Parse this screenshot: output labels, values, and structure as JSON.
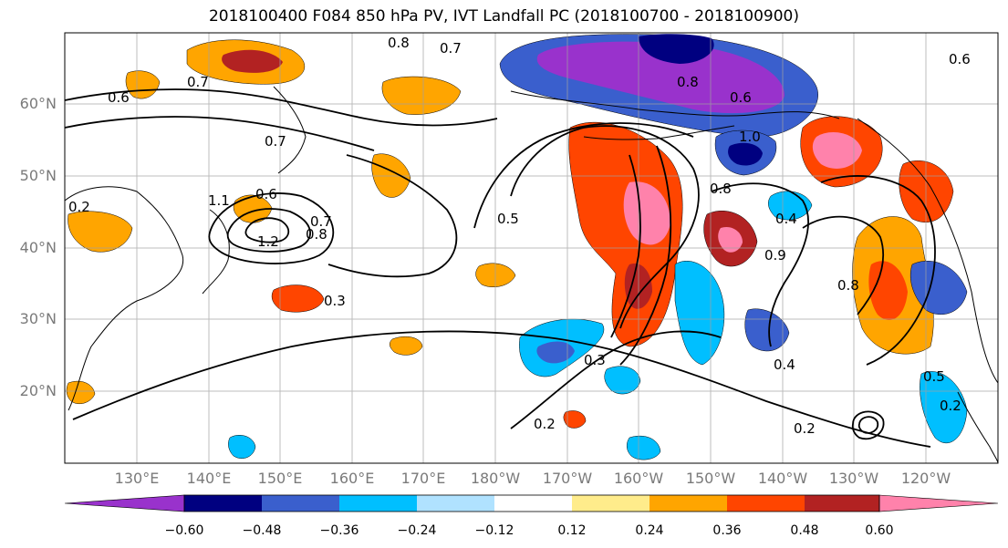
{
  "title": "2018100400 F084 850 hPa PV, IVT Landfall PC (2018100700 - 2018100900)",
  "lat_labels": [
    "60°N",
    "50°N",
    "40°N",
    "30°N",
    "20°N"
  ],
  "lon_labels": [
    "130°E",
    "140°E",
    "150°E",
    "160°E",
    "170°E",
    "180°W",
    "170°W",
    "160°W",
    "150°W",
    "140°W",
    "130°W",
    "120°W"
  ],
  "colorbar": {
    "ticks": [
      "−0.60",
      "−0.48",
      "−0.36",
      "−0.24",
      "−0.12",
      "0.12",
      "0.24",
      "0.36",
      "0.48",
      "0.60"
    ],
    "colors": [
      "#9932cc",
      "#000080",
      "#3a5fcd",
      "#00bfff",
      "#b0e2ff",
      "#ffffff",
      "#ffec8b",
      "#ffa500",
      "#ff4500",
      "#b22222",
      "#ff82ab"
    ]
  },
  "contour_labels": [
    "0.8",
    "0.7",
    "0.7",
    "0.6",
    "0.7",
    "1.1",
    "0.6",
    "0.8",
    "1.2",
    "0.7",
    "0.5",
    "0.3",
    "0.3",
    "0.2",
    "0.2",
    "0.9",
    "0.4",
    "0.8",
    "1.0",
    "0.8",
    "0.6",
    "0.8",
    "0.6",
    "0.4",
    "0.2",
    "0.5",
    "0.2"
  ]
}
